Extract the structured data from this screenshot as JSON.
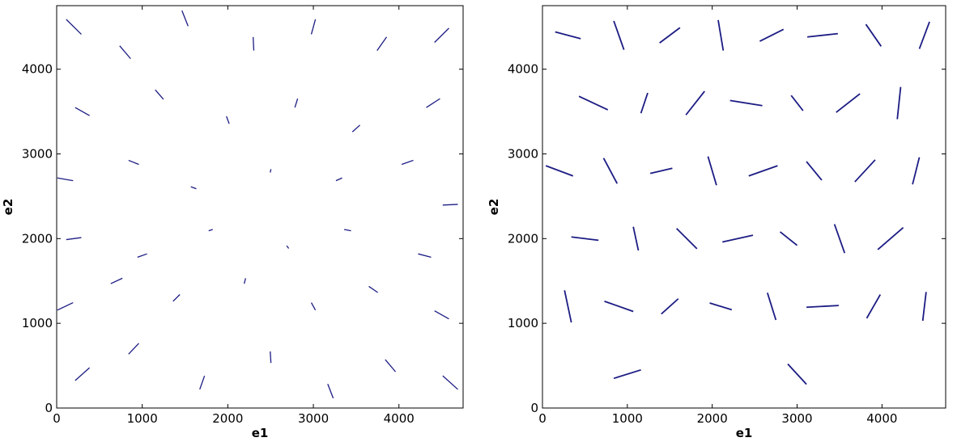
{
  "chart_data": [
    {
      "type": "quiver",
      "xlabel": "e1",
      "ylabel": "e2",
      "color": "#1c1c84",
      "xlim": [
        0,
        4750
      ],
      "ylim": [
        0,
        4750
      ],
      "xticks": [
        0,
        1000,
        2000,
        3000,
        4000
      ],
      "yticks": [
        0,
        1000,
        2000,
        3000,
        4000
      ],
      "x": [
        200,
        800,
        1500,
        2300,
        3000,
        3800,
        4500,
        300,
        1200,
        2000,
        2800,
        3500,
        4400,
        100,
        900,
        1600,
        2500,
        3300,
        4100,
        4600,
        200,
        1000,
        1800,
        2700,
        3400,
        4300,
        100,
        700,
        1400,
        2200,
        3000,
        3700,
        4500,
        300,
        900,
        1700,
        2500,
        3200,
        3900,
        4600
      ],
      "y": [
        4500,
        4200,
        4600,
        4300,
        4500,
        4300,
        4400,
        3500,
        3700,
        3400,
        3600,
        3300,
        3600,
        2700,
        2900,
        2600,
        2800,
        2700,
        2900,
        2400,
        2000,
        1800,
        2100,
        1900,
        2100,
        1800,
        1200,
        1500,
        1300,
        1500,
        1200,
        1400,
        1100,
        400,
        700,
        300,
        600,
        200,
        500,
        300
      ],
      "u": [
        -88,
        -64,
        -36,
        -4,
        24,
        56,
        84,
        -84,
        -48,
        -16,
        16,
        44,
        80,
        -92,
        -60,
        -32,
        4,
        36,
        68,
        88,
        -88,
        -56,
        -24,
        12,
        40,
        76,
        -92,
        -68,
        -40,
        -8,
        24,
        52,
        84,
        -84,
        -60,
        -28,
        4,
        32,
        60,
        88
      ],
      "v": [
        88,
        76,
        92,
        80,
        88,
        80,
        84,
        48,
        56,
        44,
        52,
        40,
        52,
        16,
        24,
        12,
        20,
        16,
        24,
        4,
        -12,
        -20,
        -8,
        -16,
        -8,
        -20,
        -44,
        -32,
        -40,
        -32,
        -44,
        -36,
        -48,
        -76,
        -64,
        -80,
        -68,
        -84,
        -72,
        -80
      ]
    },
    {
      "type": "quiver",
      "xlabel": "e1",
      "ylabel": "e2",
      "color": "#1c1c84",
      "xlim": [
        0,
        4750
      ],
      "ylim": [
        0,
        4750
      ],
      "xticks": [
        0,
        1000,
        2000,
        3000,
        4000
      ],
      "yticks": [
        0,
        1000,
        2000,
        3000,
        4000
      ],
      "x": [
        300,
        900,
        1500,
        2100,
        2700,
        3300,
        3900,
        4500,
        600,
        1200,
        1800,
        2400,
        3000,
        3600,
        4200,
        200,
        800,
        1400,
        2000,
        2600,
        3200,
        3800,
        4400,
        500,
        1100,
        1700,
        2300,
        2900,
        3500,
        4100,
        300,
        900,
        1500,
        2100,
        2700,
        3300,
        3900,
        4500,
        1000,
        3000
      ],
      "y": [
        4400,
        4400,
        4400,
        4400,
        4400,
        4400,
        4400,
        4400,
        3600,
        3600,
        3600,
        3600,
        3600,
        3600,
        3600,
        2800,
        2800,
        2800,
        2800,
        2800,
        2800,
        2800,
        2800,
        2000,
        2000,
        2000,
        2000,
        2000,
        2000,
        2000,
        1200,
        1200,
        1200,
        1200,
        1200,
        1200,
        1200,
        1200,
        400,
        400
      ],
      "u": [
        150,
        -60,
        120,
        30,
        -140,
        180,
        -90,
        60,
        170,
        -40,
        110,
        190,
        -70,
        140,
        20,
        -160,
        80,
        130,
        -50,
        170,
        90,
        -120,
        40,
        160,
        -30,
        120,
        180,
        -100,
        60,
        150,
        -40,
        170,
        100,
        -130,
        50,
        190,
        -80,
        20,
        160,
        -110
      ],
      "v": [
        -40,
        170,
        90,
        -180,
        -70,
        20,
        130,
        160,
        -80,
        -120,
        140,
        -30,
        90,
        110,
        190,
        60,
        -150,
        30,
        170,
        60,
        -110,
        -130,
        160,
        -20,
        140,
        -120,
        40,
        80,
        -170,
        130,
        190,
        -60,
        90,
        40,
        -160,
        10,
        -140,
        170,
        50,
        120
      ]
    }
  ]
}
